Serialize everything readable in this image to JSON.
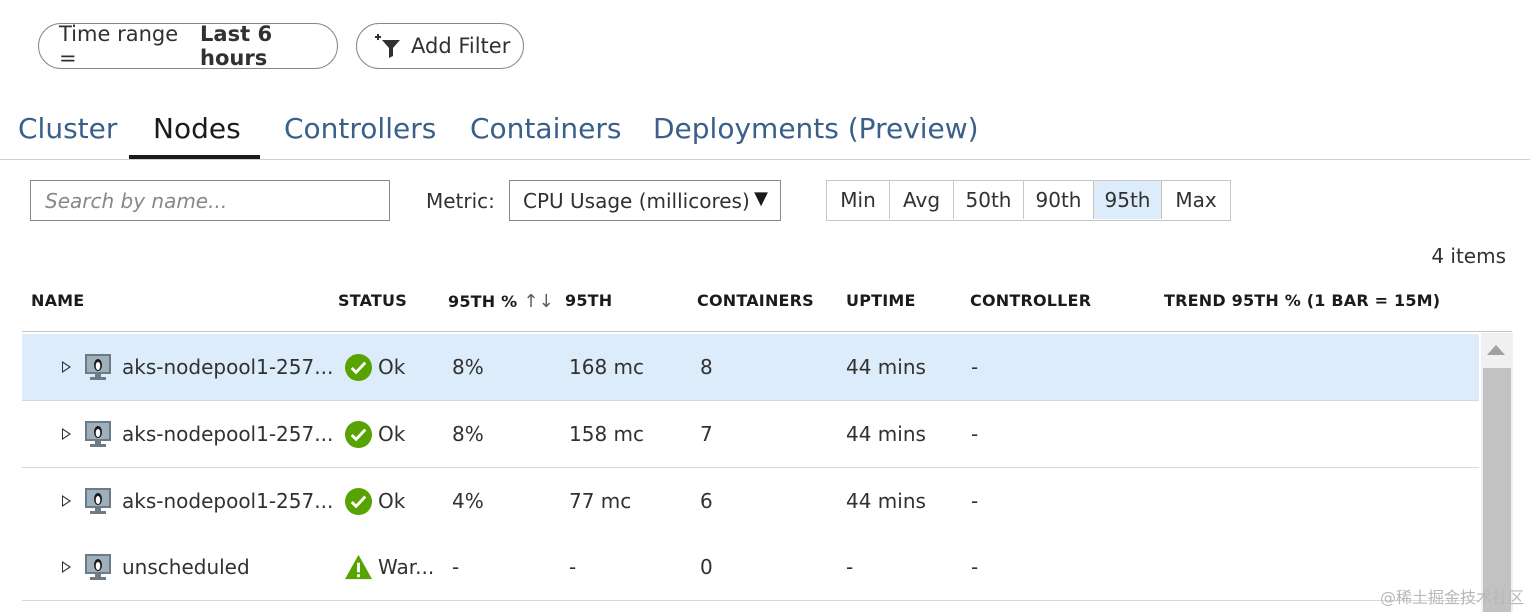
{
  "filters": {
    "time_range_label": "Time range =",
    "time_range_value": "Last 6 hours",
    "add_filter_label": "Add Filter"
  },
  "tabs": [
    {
      "label": "Cluster",
      "active": false
    },
    {
      "label": "Nodes",
      "active": true
    },
    {
      "label": "Controllers",
      "active": false
    },
    {
      "label": "Containers",
      "active": false
    },
    {
      "label": "Deployments (Preview)",
      "active": false
    }
  ],
  "toolbar": {
    "search_placeholder": "Search by name...",
    "metric_label": "Metric:",
    "metric_selected": "CPU Usage (millicores)",
    "dropdown_arrow": "▼",
    "percentiles": [
      "Min",
      "Avg",
      "50th",
      "90th",
      "95th",
      "Max"
    ],
    "percentile_active": "95th",
    "item_count": "4 items"
  },
  "table": {
    "columns": [
      "NAME",
      "STATUS",
      "95TH %",
      "95TH",
      "CONTAINERS",
      "UPTIME",
      "CONTROLLER",
      "TREND 95TH % (1 BAR = 15M)"
    ],
    "sort_indicator": "↑↓",
    "rows": [
      {
        "name": "aks-nodepool1-257...",
        "status": "Ok",
        "status_type": "ok",
        "pct": "8%",
        "value": "168 mc",
        "containers": "8",
        "uptime": "44 mins",
        "controller": "-",
        "selected": true
      },
      {
        "name": "aks-nodepool1-257...",
        "status": "Ok",
        "status_type": "ok",
        "pct": "8%",
        "value": "158 mc",
        "containers": "7",
        "uptime": "44 mins",
        "controller": "-",
        "selected": false
      },
      {
        "name": "aks-nodepool1-257...",
        "status": "Ok",
        "status_type": "ok",
        "pct": "4%",
        "value": "77 mc",
        "containers": "6",
        "uptime": "44 mins",
        "controller": "-",
        "selected": false
      },
      {
        "name": "unscheduled",
        "status": "War...",
        "status_type": "warning",
        "pct": "-",
        "value": "-",
        "containers": "0",
        "uptime": "-",
        "controller": "-",
        "selected": false
      }
    ]
  },
  "watermark": "@稀土掘金技术社区",
  "colors": {
    "ok_green": "#57a300",
    "warning_green": "#57a300",
    "selected_row": "#dcecfb",
    "tab_link": "#3a5f8a"
  }
}
